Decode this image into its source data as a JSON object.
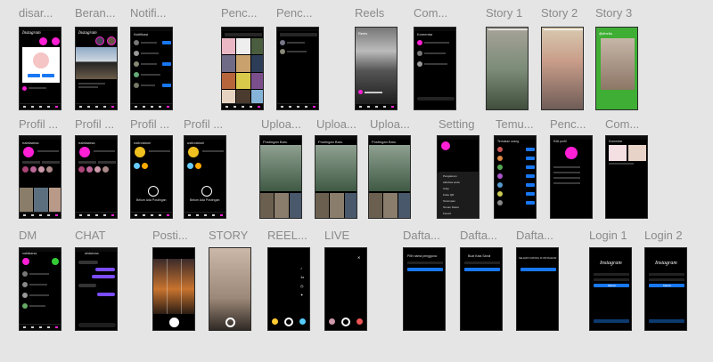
{
  "titles": {
    "disar": "disar...",
    "beranda": "Beran...",
    "notifikasi": "Notifi...",
    "pencarian1": "Penc...",
    "pencarian2": "Penc...",
    "reels": "Reels",
    "comment1": "Com...",
    "story1": "Story 1",
    "story2": "Story 2",
    "story3": "Story 3",
    "profil1": "Profil ...",
    "profil2": "Profil ...",
    "profil3": "Profil ...",
    "profil4": "Profil ...",
    "upload1": "Uploa...",
    "upload2": "Uploa...",
    "upload3": "Uploa...",
    "setting": "Setting",
    "temukan": "Temu...",
    "pencarian3": "Penc...",
    "comment2": "Com...",
    "dm": "DM",
    "chat": "CHAT",
    "posting": "Posti...",
    "story": "STORY",
    "reel": "REEL...",
    "live": "LIVE",
    "daftar1": "Dafta...",
    "daftar2": "Dafta...",
    "daftar3": "Dafta...",
    "login1": "Login 1",
    "login2": "Login 2"
  },
  "screen_text": {
    "instagram_logo": "Instagram",
    "notif_header": "Notifikasi",
    "reels_header": "Reels",
    "comment_header": "Komentar",
    "story3_user": "@dhella",
    "profile_user": "nabilaarsa",
    "profile_user2": "ustindaloni",
    "upload_header": "Postingan Baru",
    "setting_menu": [
      "Pengaturan",
      "Aktivitas anda",
      "Arsip",
      "Kode QR",
      "Tersimpan",
      "Teman Dekat",
      "Favorit"
    ],
    "temukan_header": "Temukan orang",
    "edit_profile": "Edit profil",
    "comment_header2": "Komentar",
    "dm_user": "nabilaarsa",
    "chat_user": "ahdwnoss",
    "no_posts": "Belum Ada Postingan",
    "daftar1_text": "Pilih nama pengguna",
    "daftar2_text": "Buat Kata Sandi",
    "daftar3_text": "SELAMAT DATANG DI INSTAGRAM",
    "login_button": "Masuk"
  },
  "colors": {
    "accent": "#ff1fd5",
    "brand_blue": "#1877f2",
    "canvas": "#e5e5e5",
    "screen": "#000000"
  }
}
